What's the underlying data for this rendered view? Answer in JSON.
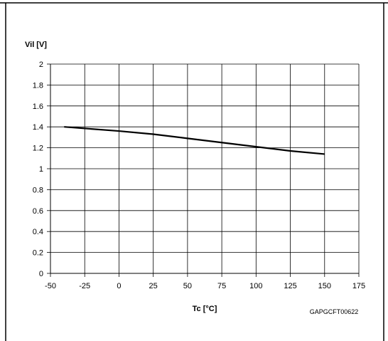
{
  "chart_data": {
    "type": "line",
    "ylabel": "Vil [V]",
    "xlabel": "Tc [°C]",
    "code": "GAPGCFT00622",
    "xlim": [
      -50,
      175
    ],
    "ylim": [
      0,
      2
    ],
    "xticks": [
      -50,
      -25,
      0,
      25,
      50,
      75,
      100,
      125,
      150,
      175
    ],
    "yticks": [
      0,
      0.2,
      0.4,
      0.6,
      0.8,
      1,
      1.2,
      1.4,
      1.6,
      1.8,
      2
    ],
    "grid": true,
    "series": [
      {
        "x": [
          -40,
          0,
          25,
          50,
          75,
          100,
          125,
          150
        ],
        "y": [
          1.4,
          1.36,
          1.33,
          1.29,
          1.25,
          1.21,
          1.17,
          1.14
        ],
        "color": "#000000"
      }
    ]
  }
}
